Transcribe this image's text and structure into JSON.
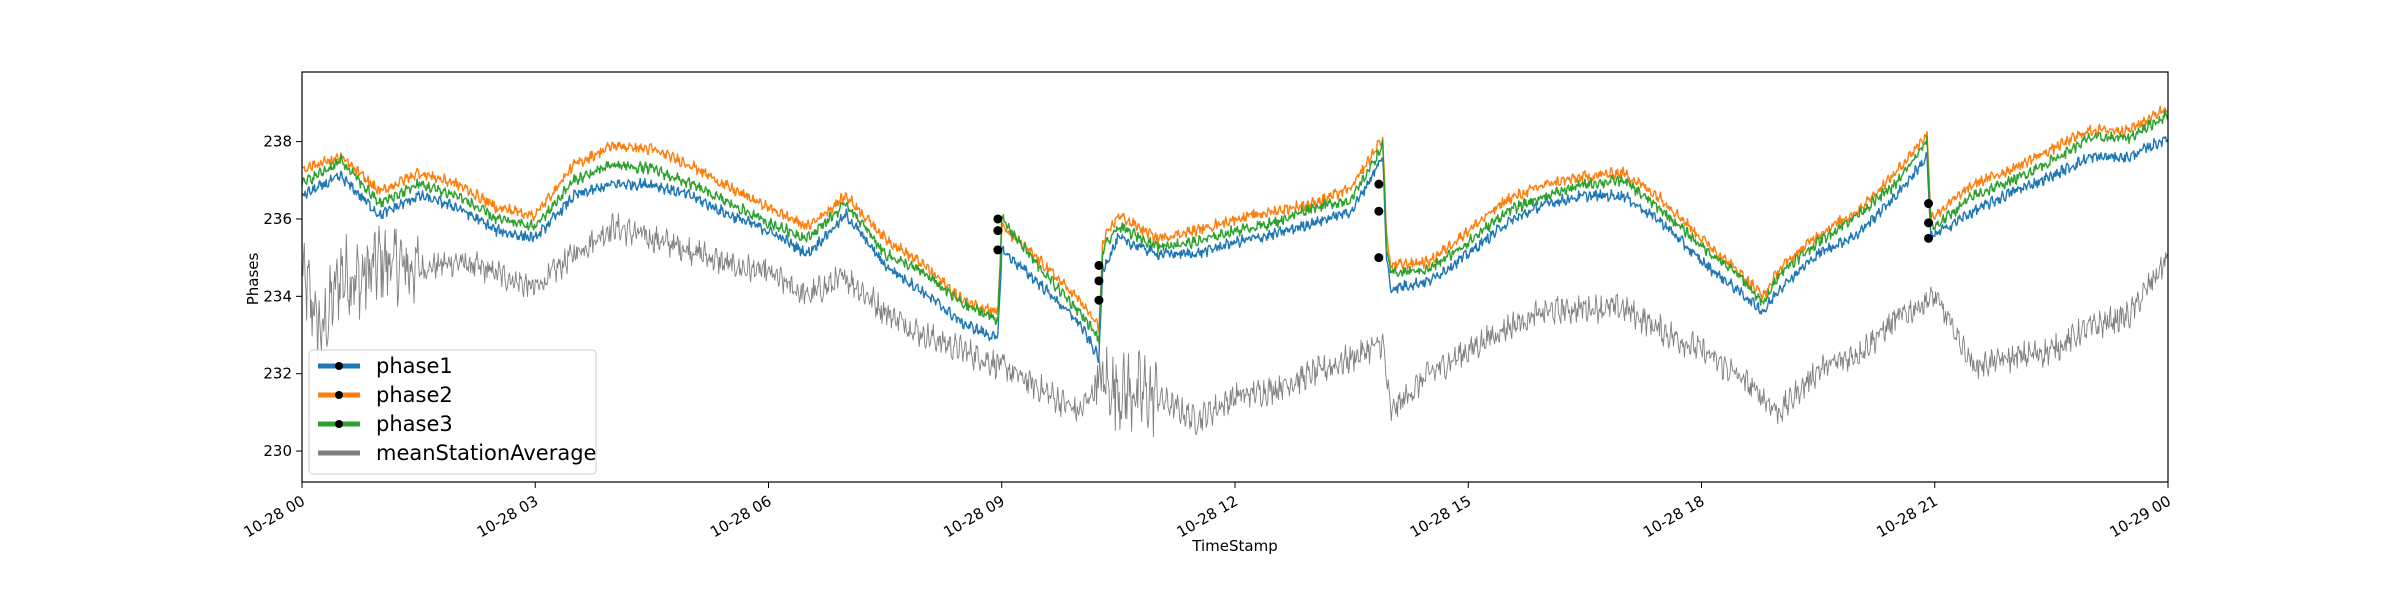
{
  "chart_data": {
    "type": "line",
    "title": "",
    "xlabel": "TimeStamp",
    "ylabel": "Phases",
    "xlim": [
      "10-28 00",
      "10-29 00"
    ],
    "ylim": [
      229.2,
      239.8
    ],
    "grid": false,
    "legend_position": "lower-left",
    "x_ticks": [
      {
        "label": "10-28 00",
        "hour": 0
      },
      {
        "label": "10-28 03",
        "hour": 3
      },
      {
        "label": "10-28 06",
        "hour": 6
      },
      {
        "label": "10-28 09",
        "hour": 9
      },
      {
        "label": "10-28 12",
        "hour": 12
      },
      {
        "label": "10-28 15",
        "hour": 15
      },
      {
        "label": "10-28 18",
        "hour": 18
      },
      {
        "label": "10-28 21",
        "hour": 21
      },
      {
        "label": "10-29 00",
        "hour": 24
      }
    ],
    "y_ticks": [
      230,
      232,
      234,
      236,
      238
    ],
    "series": [
      {
        "name": "phase1",
        "color": "#1f77b4",
        "x_hours": [
          0,
          0.5,
          1,
          1.5,
          2,
          2.5,
          3,
          3.5,
          4,
          4.5,
          5,
          5.5,
          6,
          6.5,
          7,
          7.5,
          8,
          8.5,
          8.95,
          9.0,
          9.5,
          10.0,
          10.25,
          10.3,
          10.5,
          11,
          11.5,
          12,
          12.5,
          13,
          13.5,
          13.9,
          13.95,
          14.0,
          14.5,
          15,
          15.5,
          16,
          16.5,
          17,
          17.5,
          18,
          18.5,
          18.8,
          19,
          19.5,
          20,
          20.5,
          20.9,
          20.95,
          21.0,
          21.5,
          22,
          22.5,
          23,
          23.5,
          24
        ],
        "values": [
          236.6,
          237.1,
          236.1,
          236.6,
          236.3,
          235.7,
          235.5,
          236.6,
          236.9,
          236.9,
          236.6,
          236.1,
          235.7,
          235.1,
          236.1,
          234.8,
          234.1,
          233.3,
          232.9,
          235.2,
          234.3,
          233.3,
          232.4,
          234.7,
          235.5,
          235.1,
          235.1,
          235.4,
          235.6,
          235.9,
          236.2,
          237.6,
          235.0,
          234.2,
          234.4,
          235.1,
          235.9,
          236.4,
          236.6,
          236.6,
          235.9,
          234.9,
          234.1,
          233.6,
          234.2,
          235.1,
          235.6,
          236.6,
          237.6,
          235.5,
          235.6,
          236.2,
          236.7,
          237.1,
          237.6,
          237.6,
          238.1
        ]
      },
      {
        "name": "phase2",
        "color": "#ff7f0e",
        "x_hours": [
          0,
          0.5,
          1,
          1.5,
          2,
          2.5,
          3,
          3.5,
          4,
          4.5,
          5,
          5.5,
          6,
          6.5,
          7,
          7.5,
          8,
          8.5,
          8.95,
          9.0,
          9.5,
          10.0,
          10.25,
          10.3,
          10.5,
          11,
          11.5,
          12,
          12.5,
          13,
          13.5,
          13.9,
          13.95,
          14.0,
          14.5,
          15,
          15.5,
          16,
          16.5,
          17,
          17.5,
          18,
          18.5,
          18.8,
          19,
          19.5,
          20,
          20.5,
          20.9,
          20.95,
          21.0,
          21.5,
          22,
          22.5,
          23,
          23.5,
          24
        ],
        "values": [
          237.3,
          237.6,
          236.7,
          237.2,
          236.9,
          236.3,
          236.1,
          237.4,
          237.9,
          237.8,
          237.4,
          236.8,
          236.3,
          235.8,
          236.6,
          235.5,
          234.8,
          233.9,
          233.6,
          235.8,
          234.9,
          233.9,
          233.2,
          235.4,
          236.1,
          235.5,
          235.7,
          236.0,
          236.2,
          236.4,
          236.8,
          238.1,
          235.6,
          234.8,
          234.9,
          235.7,
          236.5,
          236.9,
          237.1,
          237.2,
          236.5,
          235.5,
          234.6,
          234.0,
          234.7,
          235.6,
          236.2,
          237.2,
          238.2,
          236.1,
          236.1,
          236.9,
          237.3,
          237.8,
          238.3,
          238.3,
          238.9
        ]
      },
      {
        "name": "phase3",
        "color": "#2ca02c",
        "x_hours": [
          0,
          0.5,
          1,
          1.5,
          2,
          2.5,
          3,
          3.5,
          4,
          4.5,
          5,
          5.5,
          6,
          6.5,
          7,
          7.5,
          8,
          8.5,
          8.95,
          9.0,
          9.5,
          10.0,
          10.25,
          10.3,
          10.5,
          11,
          11.5,
          12,
          12.5,
          13,
          13.5,
          13.9,
          13.95,
          14.0,
          14.5,
          15,
          15.5,
          16,
          16.5,
          17,
          17.5,
          18,
          18.5,
          18.8,
          19,
          19.5,
          20,
          20.5,
          20.9,
          20.95,
          21.0,
          21.5,
          22,
          22.5,
          23,
          23.5,
          24
        ],
        "values": [
          236.9,
          237.5,
          236.4,
          236.9,
          236.6,
          236.0,
          235.8,
          237.0,
          237.4,
          237.3,
          236.9,
          236.4,
          235.9,
          235.5,
          236.4,
          235.1,
          234.6,
          233.8,
          233.4,
          236.0,
          234.7,
          233.6,
          232.9,
          235.2,
          235.8,
          235.3,
          235.4,
          235.7,
          235.9,
          236.3,
          236.5,
          237.9,
          235.3,
          234.6,
          234.7,
          235.4,
          236.2,
          236.6,
          236.9,
          237.0,
          236.2,
          235.3,
          234.5,
          233.8,
          234.6,
          235.4,
          236.1,
          236.9,
          238.0,
          235.9,
          235.8,
          236.6,
          237.0,
          237.5,
          238.1,
          238.1,
          238.7
        ]
      },
      {
        "name": "meanStationAverage",
        "color": "#808080",
        "x_hours": [
          0,
          0.25,
          0.5,
          0.75,
          1,
          1.5,
          2,
          2.5,
          3,
          3.5,
          4,
          4.5,
          5,
          5.5,
          6,
          6.5,
          7,
          7.5,
          8,
          8.5,
          9,
          9.5,
          10,
          10.25,
          10.5,
          11,
          11.5,
          12,
          12.5,
          13,
          13.5,
          13.9,
          14,
          14.5,
          15,
          15.5,
          16,
          16.5,
          17,
          17.5,
          18,
          18.5,
          19,
          19.5,
          20,
          20.5,
          21,
          21.5,
          22,
          22.5,
          23,
          23.5,
          24
        ],
        "values": [
          234.6,
          233.0,
          234.6,
          234.4,
          234.9,
          234.7,
          234.9,
          234.6,
          234.2,
          235.1,
          235.8,
          235.5,
          235.2,
          234.8,
          234.6,
          234.0,
          234.5,
          233.6,
          233.0,
          232.6,
          232.2,
          231.6,
          231.0,
          231.8,
          231.6,
          231.4,
          230.8,
          231.4,
          231.6,
          232.0,
          232.4,
          232.8,
          231.0,
          232.0,
          232.6,
          233.2,
          233.6,
          233.7,
          233.7,
          233.1,
          232.6,
          231.9,
          231.0,
          232.1,
          232.5,
          233.4,
          234.0,
          232.2,
          232.4,
          232.6,
          233.2,
          233.5,
          235.0
        ]
      }
    ],
    "markers": {
      "phase1": [
        {
          "hour": 8.95,
          "value": 235.2
        },
        {
          "hour": 10.25,
          "value": 233.9
        },
        {
          "hour": 13.85,
          "value": 235.0
        },
        {
          "hour": 20.92,
          "value": 235.5
        }
      ],
      "phase2": [
        {
          "hour": 8.95,
          "value": 235.7
        },
        {
          "hour": 10.25,
          "value": 234.8
        },
        {
          "hour": 13.85,
          "value": 236.9
        },
        {
          "hour": 20.92,
          "value": 236.4
        }
      ],
      "phase3": [
        {
          "hour": 8.95,
          "value": 236.0
        },
        {
          "hour": 10.25,
          "value": 234.4
        },
        {
          "hour": 13.85,
          "value": 236.2
        },
        {
          "hour": 20.92,
          "value": 235.9
        }
      ]
    }
  }
}
